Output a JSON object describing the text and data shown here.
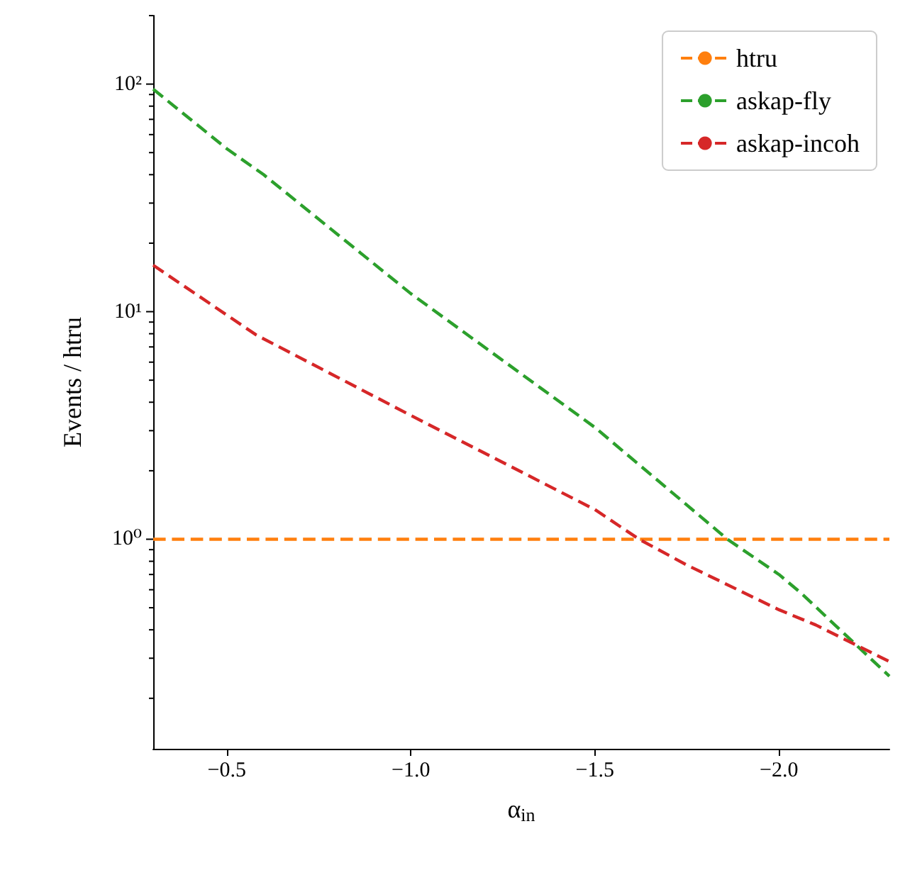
{
  "chart_data": {
    "type": "line",
    "xlabel": "α$_{in}$",
    "ylabel": "Events / htru",
    "xlim": [
      -0.3,
      -2.3
    ],
    "xticks": [
      {
        "value": -0.5,
        "label": "−0.5"
      },
      {
        "value": -1.0,
        "label": "−1.0"
      },
      {
        "value": -1.5,
        "label": "−1.5"
      },
      {
        "value": -2.0,
        "label": "−2.0"
      }
    ],
    "ylim": [
      0.12,
      200
    ],
    "log": true,
    "yticks": [
      {
        "value": 0.2,
        "label": null
      },
      {
        "value": 0.3,
        "label": null
      },
      {
        "value": 0.4,
        "label": null
      },
      {
        "value": 0.5,
        "label": null
      },
      {
        "value": 0.6,
        "label": null
      },
      {
        "value": 0.7,
        "label": null
      },
      {
        "value": 0.8,
        "label": null
      },
      {
        "value": 0.9,
        "label": null
      },
      {
        "value": 1,
        "label": "10⁰"
      },
      {
        "value": 2,
        "label": null
      },
      {
        "value": 3,
        "label": null
      },
      {
        "value": 4,
        "label": null
      },
      {
        "value": 5,
        "label": null
      },
      {
        "value": 6,
        "label": null
      },
      {
        "value": 7,
        "label": null
      },
      {
        "value": 8,
        "label": null
      },
      {
        "value": 9,
        "label": null
      },
      {
        "value": 10,
        "label": "10¹"
      },
      {
        "value": 20,
        "label": null
      },
      {
        "value": 30,
        "label": null
      },
      {
        "value": 40,
        "label": null
      },
      {
        "value": 50,
        "label": null
      },
      {
        "value": 60,
        "label": null
      },
      {
        "value": 70,
        "label": null
      },
      {
        "value": 80,
        "label": null
      },
      {
        "value": 90,
        "label": null
      },
      {
        "value": 100,
        "label": "10²"
      },
      {
        "value": 200,
        "label": null
      }
    ],
    "grid": false,
    "legend": "top right",
    "marker": "none",
    "line_style": "dashed",
    "series": [
      {
        "name": "htru",
        "color": "#ff7f0e",
        "x": [
          -0.3,
          -2.3
        ],
        "values": [
          1,
          1
        ]
      },
      {
        "name": "askap-fly",
        "color": "#2ca02c",
        "x": [
          -0.3,
          -0.5,
          -0.6,
          -1.0,
          -1.5,
          -1.86,
          -2.0,
          -2.06,
          -2.3
        ],
        "values": [
          95,
          52,
          40,
          12,
          3.1,
          1.0,
          0.7,
          0.58,
          0.25
        ]
      },
      {
        "name": "askap-incoh",
        "color": "#d62728",
        "x": [
          -0.3,
          -0.58,
          -1.0,
          -1.5,
          -1.62,
          -1.75,
          -2.0,
          -2.1,
          -2.3
        ],
        "values": [
          16,
          7.9,
          3.5,
          1.35,
          1.0,
          0.77,
          0.49,
          0.42,
          0.29
        ]
      }
    ]
  }
}
